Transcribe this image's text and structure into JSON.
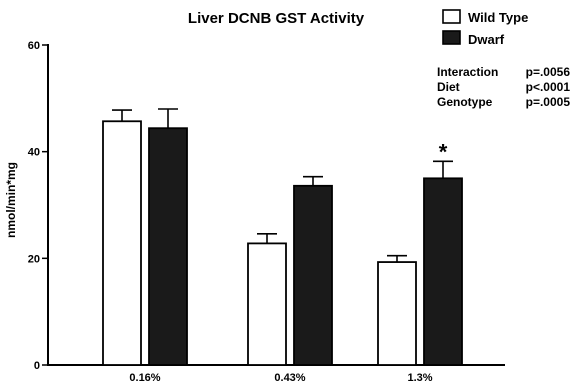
{
  "chart_data": {
    "type": "bar",
    "title": "Liver DCNB GST Activity",
    "ylabel": "nmol/min*mg",
    "xlabel": "",
    "categories": [
      "0.16%",
      "0.43%",
      "1.3%"
    ],
    "ylim": [
      0,
      60
    ],
    "yticks": [
      0,
      20,
      40,
      60
    ],
    "series": [
      {
        "name": "Wild Type",
        "values": [
          45.7,
          22.8,
          19.3
        ],
        "errors": [
          2.1,
          1.8,
          1.2
        ],
        "color": "#ffffff"
      },
      {
        "name": "Dwarf",
        "values": [
          44.4,
          33.6,
          35.0
        ],
        "errors": [
          3.6,
          1.7,
          3.2
        ],
        "color": "#1a1a1a"
      }
    ],
    "annotations": [
      {
        "text": "*",
        "category": "1.3%",
        "series": "Dwarf"
      }
    ],
    "stats": [
      {
        "label": "Interaction",
        "value": "p=.0056"
      },
      {
        "label": "Diet",
        "value": "p<.0001"
      },
      {
        "label": "Genotype",
        "value": "p=.0005"
      }
    ],
    "legend_position": "top-right",
    "grid": false
  }
}
